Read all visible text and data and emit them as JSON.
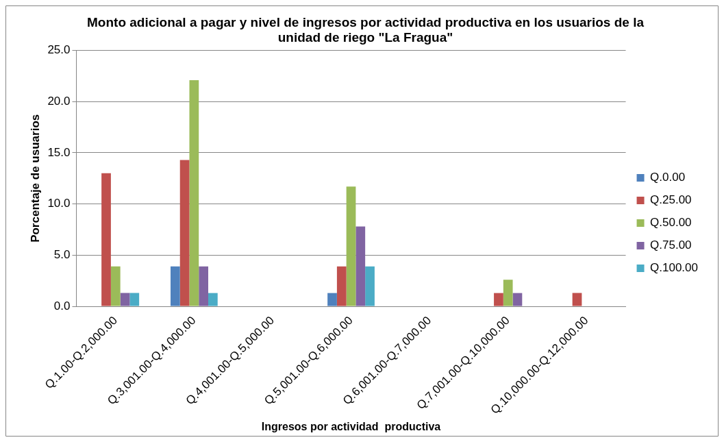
{
  "chart_data": {
    "type": "bar",
    "title": "Monto adicional a pagar y nivel de ingresos por actividad productiva en los usuarios de la unidad de riego \"La Fragua\"",
    "xlabel": "Ingresos por actividad  productiva",
    "ylabel": "Porcentaje de usuarios",
    "categories": [
      "Q.1.00-Q.2,000.00",
      "Q.3,001.00-Q.4,000.00",
      "Q.4,001.00-Q.5,000.00",
      "Q.5,001.00-Q.6,000.00",
      "Q.6,001.00-Q.7,000.00",
      "Q.7,001.00-Q.10,000.00",
      "Q.10,000.00-Q.12,000.00"
    ],
    "series": [
      {
        "name": "Q.0.00",
        "color": "#4f81bd",
        "values": [
          0,
          3.9,
          0,
          1.3,
          0,
          0,
          0
        ]
      },
      {
        "name": "Q.25.00",
        "color": "#c0504d",
        "values": [
          13.0,
          14.3,
          0,
          3.9,
          0,
          1.3,
          1.3
        ]
      },
      {
        "name": "Q.50.00",
        "color": "#9bbb59",
        "values": [
          3.9,
          22.1,
          0,
          11.7,
          0,
          2.6,
          0
        ]
      },
      {
        "name": "Q.75.00",
        "color": "#8064a2",
        "values": [
          1.3,
          3.9,
          0,
          7.8,
          0,
          1.3,
          0
        ]
      },
      {
        "name": "Q.100.00",
        "color": "#4bacc6",
        "values": [
          1.3,
          1.3,
          0,
          3.9,
          0,
          0,
          0
        ]
      }
    ],
    "ylim": [
      0,
      25
    ],
    "yticks": [
      {
        "value": 0,
        "label": "0.0"
      },
      {
        "value": 5,
        "label": "5.0"
      },
      {
        "value": 10,
        "label": "10.0"
      },
      {
        "value": 15,
        "label": "15.0"
      },
      {
        "value": 20,
        "label": "20.0"
      },
      {
        "value": 25,
        "label": "25.0"
      }
    ],
    "grid": "y",
    "legend": "right"
  }
}
